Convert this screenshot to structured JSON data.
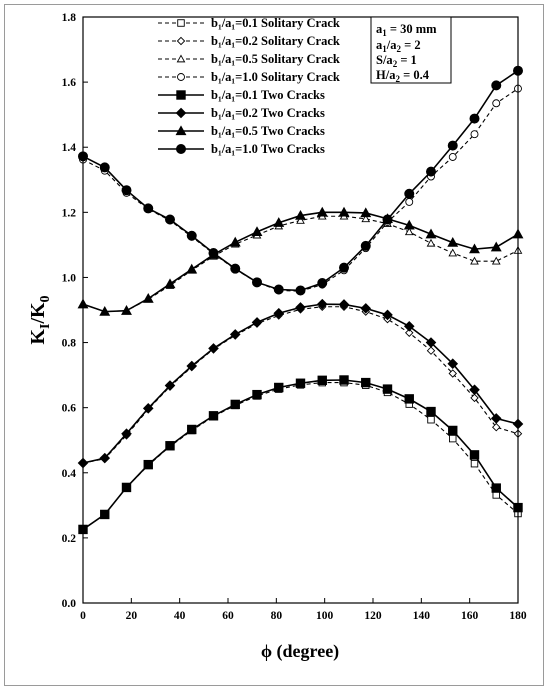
{
  "chart_data": {
    "type": "line",
    "xlabel": "ϕ (degree)",
    "ylabel_main": "K",
    "ylabel_sub1": "I",
    "ylabel_slash": "/K",
    "ylabel_sub2": "0",
    "xlim": [
      0,
      180
    ],
    "ylim": [
      0.0,
      1.8
    ],
    "xticks": [
      "0",
      "20",
      "40",
      "60",
      "80",
      "100",
      "120",
      "140",
      "160",
      "180"
    ],
    "yticks": [
      "0.0",
      "0.2",
      "0.4",
      "0.6",
      "0.8",
      "1.0",
      "1.2",
      "1.4",
      "1.6",
      "1.8"
    ],
    "grid": false,
    "legend_position": "top-left",
    "annotation": {
      "lines": [
        {
          "main": "a",
          "sub": "1",
          "rest": " = 30 mm"
        },
        {
          "main": "a",
          "sub": "1",
          "mid": "/a",
          "sub2": "2",
          "rest": " = 2"
        },
        {
          "main": "S/a",
          "sub": "2",
          "rest": " =  1"
        },
        {
          "main": "H/a",
          "sub": "2",
          "rest": " = 0.4"
        }
      ]
    },
    "x": [
      0,
      9,
      18,
      27,
      36,
      45,
      54,
      63,
      72,
      81,
      90,
      99,
      108,
      117,
      126,
      135,
      144,
      153,
      162,
      171,
      180
    ],
    "series": [
      {
        "name": "b₁/a₁=0.1  Solitary Crack",
        "marker": "square",
        "filled": false,
        "dashed": true,
        "values": [
          0.226,
          0.272,
          0.355,
          0.423,
          0.481,
          0.53,
          0.573,
          0.607,
          0.636,
          0.657,
          0.67,
          0.677,
          0.677,
          0.669,
          0.647,
          0.611,
          0.563,
          0.505,
          0.428,
          0.332,
          0.275
        ]
      },
      {
        "name": "b₁/a₁=0.2  Solitary Crack",
        "marker": "diamond",
        "filled": false,
        "dashed": true,
        "values": [
          0.43,
          0.443,
          0.515,
          0.595,
          0.665,
          0.725,
          0.78,
          0.822,
          0.858,
          0.883,
          0.902,
          0.91,
          0.91,
          0.895,
          0.872,
          0.83,
          0.775,
          0.705,
          0.63,
          0.54,
          0.52
        ]
      },
      {
        "name": "b₁/a₁=0.5  Solitary Crack",
        "marker": "triangle",
        "filled": false,
        "dashed": true,
        "values": [
          0.918,
          0.895,
          0.898,
          0.933,
          0.975,
          1.022,
          1.065,
          1.102,
          1.13,
          1.158,
          1.175,
          1.188,
          1.188,
          1.18,
          1.165,
          1.14,
          1.105,
          1.075,
          1.05,
          1.05,
          1.083
        ]
      },
      {
        "name": "b₁/a₁=1.0  Solitary Crack",
        "marker": "circle",
        "filled": false,
        "dashed": true,
        "values": [
          1.362,
          1.328,
          1.26,
          1.21,
          1.175,
          1.125,
          1.073,
          1.025,
          0.985,
          0.96,
          0.958,
          0.978,
          1.022,
          1.09,
          1.17,
          1.232,
          1.31,
          1.37,
          1.44,
          1.535,
          1.58
        ]
      },
      {
        "name": "b₁/a₁=0.1  Two Cracks",
        "marker": "square",
        "filled": true,
        "dashed": false,
        "values": [
          0.226,
          0.272,
          0.355,
          0.425,
          0.483,
          0.533,
          0.575,
          0.61,
          0.64,
          0.662,
          0.675,
          0.684,
          0.685,
          0.677,
          0.657,
          0.627,
          0.588,
          0.53,
          0.455,
          0.353,
          0.293
        ]
      },
      {
        "name": "b₁/a₁=0.2  Two Cracks",
        "marker": "diamond",
        "filled": true,
        "dashed": false,
        "values": [
          0.43,
          0.445,
          0.52,
          0.598,
          0.668,
          0.728,
          0.782,
          0.825,
          0.862,
          0.89,
          0.908,
          0.918,
          0.917,
          0.905,
          0.885,
          0.85,
          0.8,
          0.735,
          0.655,
          0.567,
          0.55
        ]
      },
      {
        "name": "b₁/a₁=0.5  Two Cracks",
        "marker": "triangle",
        "filled": true,
        "dashed": false,
        "values": [
          0.918,
          0.895,
          0.898,
          0.935,
          0.98,
          1.025,
          1.07,
          1.108,
          1.14,
          1.168,
          1.19,
          1.2,
          1.2,
          1.198,
          1.18,
          1.16,
          1.133,
          1.107,
          1.087,
          1.093,
          1.133
        ]
      },
      {
        "name": "b₁/a₁=1.0  Two Cracks",
        "marker": "circle",
        "filled": true,
        "dashed": false,
        "values": [
          1.372,
          1.338,
          1.268,
          1.212,
          1.178,
          1.128,
          1.075,
          1.027,
          0.985,
          0.963,
          0.96,
          0.983,
          1.03,
          1.097,
          1.178,
          1.257,
          1.325,
          1.405,
          1.488,
          1.59,
          1.635
        ]
      }
    ]
  }
}
